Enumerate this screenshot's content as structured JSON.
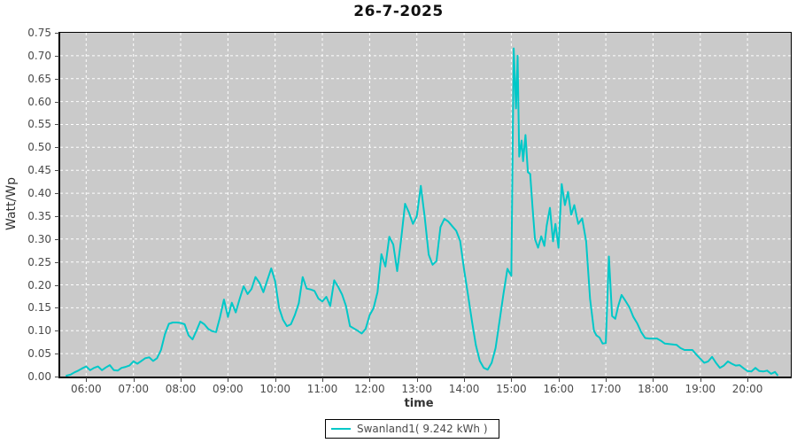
{
  "title": "26-7-2025",
  "legend": {
    "label": "Swanland1( 9.242 kWh )"
  },
  "colors": {
    "line": "#00c8c8",
    "plot_bg": "#cacaca",
    "grid": "#ffffff",
    "tick_text": "#4a4a4a",
    "title_text": "#111111"
  },
  "chart_data": {
    "type": "line",
    "title": "26-7-2025",
    "xlabel": "time",
    "ylabel": "Watt/Wp",
    "ylim": [
      0,
      0.75
    ],
    "y_tick_step": 0.05,
    "y_ticks": [
      "0.00",
      "0.05",
      "0.10",
      "0.15",
      "0.20",
      "0.25",
      "0.30",
      "0.35",
      "0.40",
      "0.45",
      "0.50",
      "0.55",
      "0.60",
      "0.65",
      "0.70",
      "0.75"
    ],
    "x_ticks": [
      "06:00",
      "07:00",
      "08:00",
      "09:00",
      "10:00",
      "11:00",
      "12:00",
      "13:00",
      "14:00",
      "15:00",
      "16:00",
      "17:00",
      "18:00",
      "19:00",
      "20:00"
    ],
    "x_domain_minutes": [
      327,
      1255
    ],
    "grid": "white dashed on gray background",
    "legend_position": "bottom-center",
    "series": [
      {
        "name": "Swanland1( 9.242 kWh )",
        "color": "#00c8c8",
        "points": [
          [
            "05:35",
            0.002
          ],
          [
            "05:40",
            0.004
          ],
          [
            "05:45",
            0.009
          ],
          [
            "05:50",
            0.013
          ],
          [
            "05:55",
            0.018
          ],
          [
            "06:00",
            0.022
          ],
          [
            "06:05",
            0.014
          ],
          [
            "06:10",
            0.019
          ],
          [
            "06:15",
            0.022
          ],
          [
            "06:20",
            0.014
          ],
          [
            "06:25",
            0.02
          ],
          [
            "06:30",
            0.025
          ],
          [
            "06:35",
            0.014
          ],
          [
            "06:40",
            0.013
          ],
          [
            "06:45",
            0.019
          ],
          [
            "06:50",
            0.021
          ],
          [
            "06:55",
            0.024
          ],
          [
            "07:00",
            0.033
          ],
          [
            "07:05",
            0.028
          ],
          [
            "07:10",
            0.034
          ],
          [
            "07:15",
            0.04
          ],
          [
            "07:20",
            0.042
          ],
          [
            "07:25",
            0.034
          ],
          [
            "07:30",
            0.04
          ],
          [
            "07:35",
            0.058
          ],
          [
            "07:40",
            0.092
          ],
          [
            "07:45",
            0.115
          ],
          [
            "07:50",
            0.118
          ],
          [
            "07:55",
            0.118
          ],
          [
            "08:00",
            0.117
          ],
          [
            "08:05",
            0.114
          ],
          [
            "08:10",
            0.09
          ],
          [
            "08:15",
            0.081
          ],
          [
            "08:20",
            0.1
          ],
          [
            "08:25",
            0.12
          ],
          [
            "08:30",
            0.114
          ],
          [
            "08:35",
            0.104
          ],
          [
            "08:40",
            0.099
          ],
          [
            "08:45",
            0.097
          ],
          [
            "08:50",
            0.13
          ],
          [
            "08:55",
            0.168
          ],
          [
            "09:00",
            0.13
          ],
          [
            "09:05",
            0.161
          ],
          [
            "09:10",
            0.14
          ],
          [
            "09:15",
            0.17
          ],
          [
            "09:20",
            0.197
          ],
          [
            "09:25",
            0.18
          ],
          [
            "09:30",
            0.191
          ],
          [
            "09:35",
            0.217
          ],
          [
            "09:40",
            0.205
          ],
          [
            "09:45",
            0.184
          ],
          [
            "09:50",
            0.21
          ],
          [
            "09:55",
            0.236
          ],
          [
            "10:00",
            0.208
          ],
          [
            "10:05",
            0.15
          ],
          [
            "10:10",
            0.124
          ],
          [
            "10:15",
            0.11
          ],
          [
            "10:20",
            0.114
          ],
          [
            "10:25",
            0.134
          ],
          [
            "10:30",
            0.16
          ],
          [
            "10:35",
            0.217
          ],
          [
            "10:40",
            0.192
          ],
          [
            "10:45",
            0.19
          ],
          [
            "10:50",
            0.187
          ],
          [
            "10:55",
            0.17
          ],
          [
            "11:00",
            0.164
          ],
          [
            "11:05",
            0.174
          ],
          [
            "11:10",
            0.154
          ],
          [
            "11:15",
            0.21
          ],
          [
            "11:20",
            0.196
          ],
          [
            "11:25",
            0.179
          ],
          [
            "11:30",
            0.154
          ],
          [
            "11:35",
            0.11
          ],
          [
            "11:40",
            0.105
          ],
          [
            "11:45",
            0.1
          ],
          [
            "11:50",
            0.094
          ],
          [
            "11:55",
            0.104
          ],
          [
            "12:00",
            0.134
          ],
          [
            "12:05",
            0.149
          ],
          [
            "12:10",
            0.184
          ],
          [
            "12:15",
            0.267
          ],
          [
            "12:20",
            0.24
          ],
          [
            "12:25",
            0.305
          ],
          [
            "12:30",
            0.288
          ],
          [
            "12:35",
            0.23
          ],
          [
            "12:40",
            0.298
          ],
          [
            "12:45",
            0.377
          ],
          [
            "12:50",
            0.358
          ],
          [
            "12:55",
            0.333
          ],
          [
            "13:00",
            0.35
          ],
          [
            "13:05",
            0.416
          ],
          [
            "13:10",
            0.348
          ],
          [
            "13:15",
            0.266
          ],
          [
            "13:20",
            0.244
          ],
          [
            "13:25",
            0.252
          ],
          [
            "13:30",
            0.326
          ],
          [
            "13:35",
            0.344
          ],
          [
            "13:40",
            0.338
          ],
          [
            "13:45",
            0.328
          ],
          [
            "13:50",
            0.318
          ],
          [
            "13:55",
            0.296
          ],
          [
            "14:00",
            0.233
          ],
          [
            "14:05",
            0.178
          ],
          [
            "14:10",
            0.12
          ],
          [
            "14:15",
            0.068
          ],
          [
            "14:20",
            0.034
          ],
          [
            "14:25",
            0.019
          ],
          [
            "14:30",
            0.015
          ],
          [
            "14:35",
            0.03
          ],
          [
            "14:40",
            0.062
          ],
          [
            "14:45",
            0.121
          ],
          [
            "14:50",
            0.18
          ],
          [
            "14:55",
            0.235
          ],
          [
            "15:00",
            0.22
          ],
          [
            "15:03",
            0.716
          ],
          [
            "15:06",
            0.585
          ],
          [
            "15:08",
            0.7
          ],
          [
            "15:10",
            0.48
          ],
          [
            "15:13",
            0.515
          ],
          [
            "15:15",
            0.47
          ],
          [
            "15:18",
            0.527
          ],
          [
            "15:21",
            0.446
          ],
          [
            "15:24",
            0.442
          ],
          [
            "15:27",
            0.368
          ],
          [
            "15:30",
            0.3
          ],
          [
            "15:34",
            0.281
          ],
          [
            "15:38",
            0.306
          ],
          [
            "15:42",
            0.285
          ],
          [
            "15:45",
            0.33
          ],
          [
            "15:49",
            0.368
          ],
          [
            "15:53",
            0.295
          ],
          [
            "15:56",
            0.333
          ],
          [
            "16:00",
            0.281
          ],
          [
            "16:04",
            0.42
          ],
          [
            "16:08",
            0.374
          ],
          [
            "16:12",
            0.403
          ],
          [
            "16:16",
            0.353
          ],
          [
            "16:20",
            0.374
          ],
          [
            "16:25",
            0.333
          ],
          [
            "16:30",
            0.345
          ],
          [
            "16:35",
            0.295
          ],
          [
            "16:40",
            0.17
          ],
          [
            "16:45",
            0.1
          ],
          [
            "16:48",
            0.09
          ],
          [
            "16:52",
            0.085
          ],
          [
            "16:56",
            0.072
          ],
          [
            "17:00",
            0.073
          ],
          [
            "17:04",
            0.262
          ],
          [
            "17:08",
            0.132
          ],
          [
            "17:12",
            0.126
          ],
          [
            "17:16",
            0.155
          ],
          [
            "17:20",
            0.178
          ],
          [
            "17:25",
            0.165
          ],
          [
            "17:30",
            0.151
          ],
          [
            "17:35",
            0.13
          ],
          [
            "17:40",
            0.116
          ],
          [
            "17:45",
            0.097
          ],
          [
            "17:50",
            0.084
          ],
          [
            "17:55",
            0.083
          ],
          [
            "18:00",
            0.083
          ],
          [
            "18:05",
            0.083
          ],
          [
            "18:10",
            0.078
          ],
          [
            "18:15",
            0.072
          ],
          [
            "18:20",
            0.071
          ],
          [
            "18:25",
            0.07
          ],
          [
            "18:30",
            0.069
          ],
          [
            "18:35",
            0.062
          ],
          [
            "18:40",
            0.058
          ],
          [
            "18:45",
            0.058
          ],
          [
            "18:50",
            0.058
          ],
          [
            "18:55",
            0.048
          ],
          [
            "19:00",
            0.039
          ],
          [
            "19:05",
            0.03
          ],
          [
            "19:10",
            0.033
          ],
          [
            "19:15",
            0.043
          ],
          [
            "19:20",
            0.03
          ],
          [
            "19:25",
            0.019
          ],
          [
            "19:30",
            0.024
          ],
          [
            "19:35",
            0.033
          ],
          [
            "19:40",
            0.028
          ],
          [
            "19:45",
            0.024
          ],
          [
            "19:50",
            0.025
          ],
          [
            "19:55",
            0.018
          ],
          [
            "20:00",
            0.012
          ],
          [
            "20:05",
            0.011
          ],
          [
            "20:10",
            0.019
          ],
          [
            "20:15",
            0.012
          ],
          [
            "20:20",
            0.011
          ],
          [
            "20:25",
            0.013
          ],
          [
            "20:30",
            0.006
          ],
          [
            "20:35",
            0.01
          ],
          [
            "20:38",
            0.003
          ]
        ]
      }
    ]
  }
}
